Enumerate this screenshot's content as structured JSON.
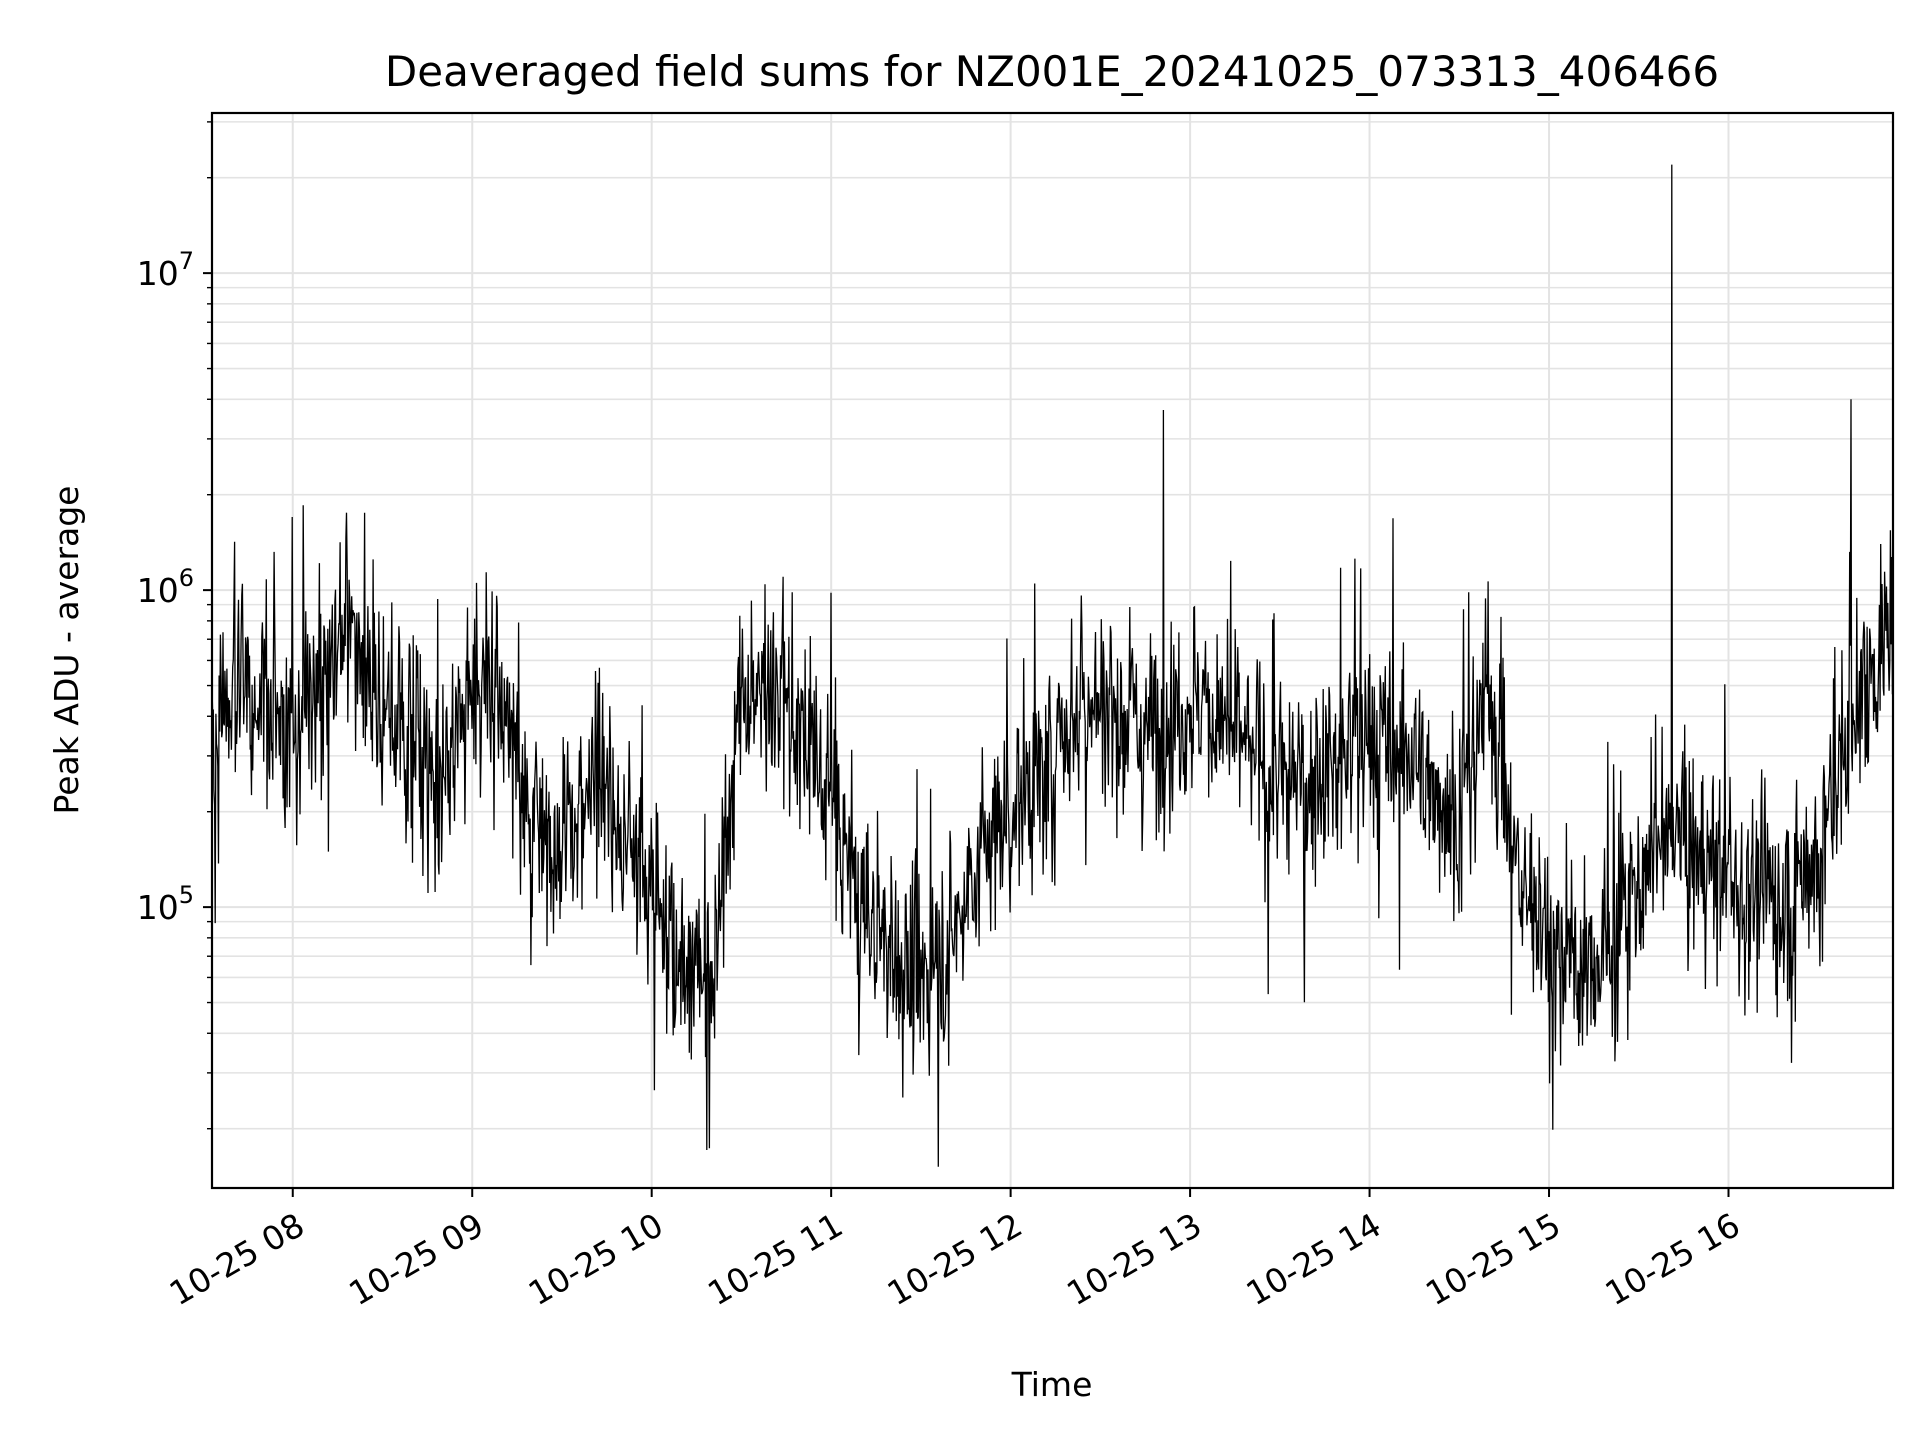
{
  "chart_data": {
    "type": "line",
    "title": "Deaveraged field sums for NZ001E_20241025_073313_406466",
    "xlabel": "Time",
    "ylabel": "Peak ADU - average",
    "yscale": "log",
    "ylim": [
      13000,
      32000000
    ],
    "xlim": [
      "10-25 07:33",
      "10-25 16:55"
    ],
    "x_tick_labels": [
      "10-25 08",
      "10-25 09",
      "10-25 10",
      "10-25 11",
      "10-25 12",
      "10-25 13",
      "10-25 14",
      "10-25 15",
      "10-25 16"
    ],
    "y_tick_labels": [
      {
        "base": "10",
        "exp": "5"
      },
      {
        "base": "10",
        "exp": "6"
      },
      {
        "base": "10",
        "exp": "7"
      }
    ],
    "grid": true,
    "line_color": "#000000",
    "series": [
      {
        "x": [
          "10-25 07:33",
          "10-25 07:40",
          "10-25 07:50",
          "10-25 08:00",
          "10-25 08:10",
          "10-25 08:20",
          "10-25 08:30",
          "10-25 08:40",
          "10-25 08:50",
          "10-25 09:00",
          "10-25 09:10",
          "10-25 09:20",
          "10-25 09:30",
          "10-25 09:40",
          "10-25 09:50",
          "10-25 10:00",
          "10-25 10:10",
          "10-25 10:20",
          "10-25 10:30",
          "10-25 10:40",
          "10-25 10:50",
          "10-25 11:00",
          "10-25 11:10",
          "10-25 11:20",
          "10-25 11:30",
          "10-25 11:40",
          "10-25 11:50",
          "10-25 12:00",
          "10-25 12:10",
          "10-25 12:20",
          "10-25 12:30",
          "10-25 12:40",
          "10-25 12:50",
          "10-25 13:00",
          "10-25 13:10",
          "10-25 13:20",
          "10-25 13:30",
          "10-25 13:40",
          "10-25 13:50",
          "10-25 14:00",
          "10-25 14:10",
          "10-25 14:20",
          "10-25 14:30",
          "10-25 14:40",
          "10-25 14:50",
          "10-25 15:00",
          "10-25 15:10",
          "10-25 15:20",
          "10-25 15:30",
          "10-25 15:40",
          "10-25 15:50",
          "10-25 16:00",
          "10-25 16:10",
          "10-25 16:20",
          "10-25 16:30",
          "10-25 16:40",
          "10-25 16:50",
          "10-25 16:55"
        ],
        "y": [
          300000,
          500000,
          450000,
          350000,
          600000,
          700000,
          400000,
          350000,
          250000,
          500000,
          450000,
          200000,
          150000,
          250000,
          180000,
          120000,
          70000,
          60000,
          500000,
          450000,
          350000,
          200000,
          100000,
          70000,
          60000,
          80000,
          150000,
          200000,
          250000,
          400000,
          450000,
          400000,
          350000,
          450000,
          400000,
          300000,
          250000,
          250000,
          300000,
          350000,
          300000,
          250000,
          200000,
          500000,
          120000,
          80000,
          60000,
          70000,
          120000,
          180000,
          150000,
          120000,
          110000,
          100000,
          150000,
          350000,
          600000,
          900000
        ]
      }
    ]
  }
}
